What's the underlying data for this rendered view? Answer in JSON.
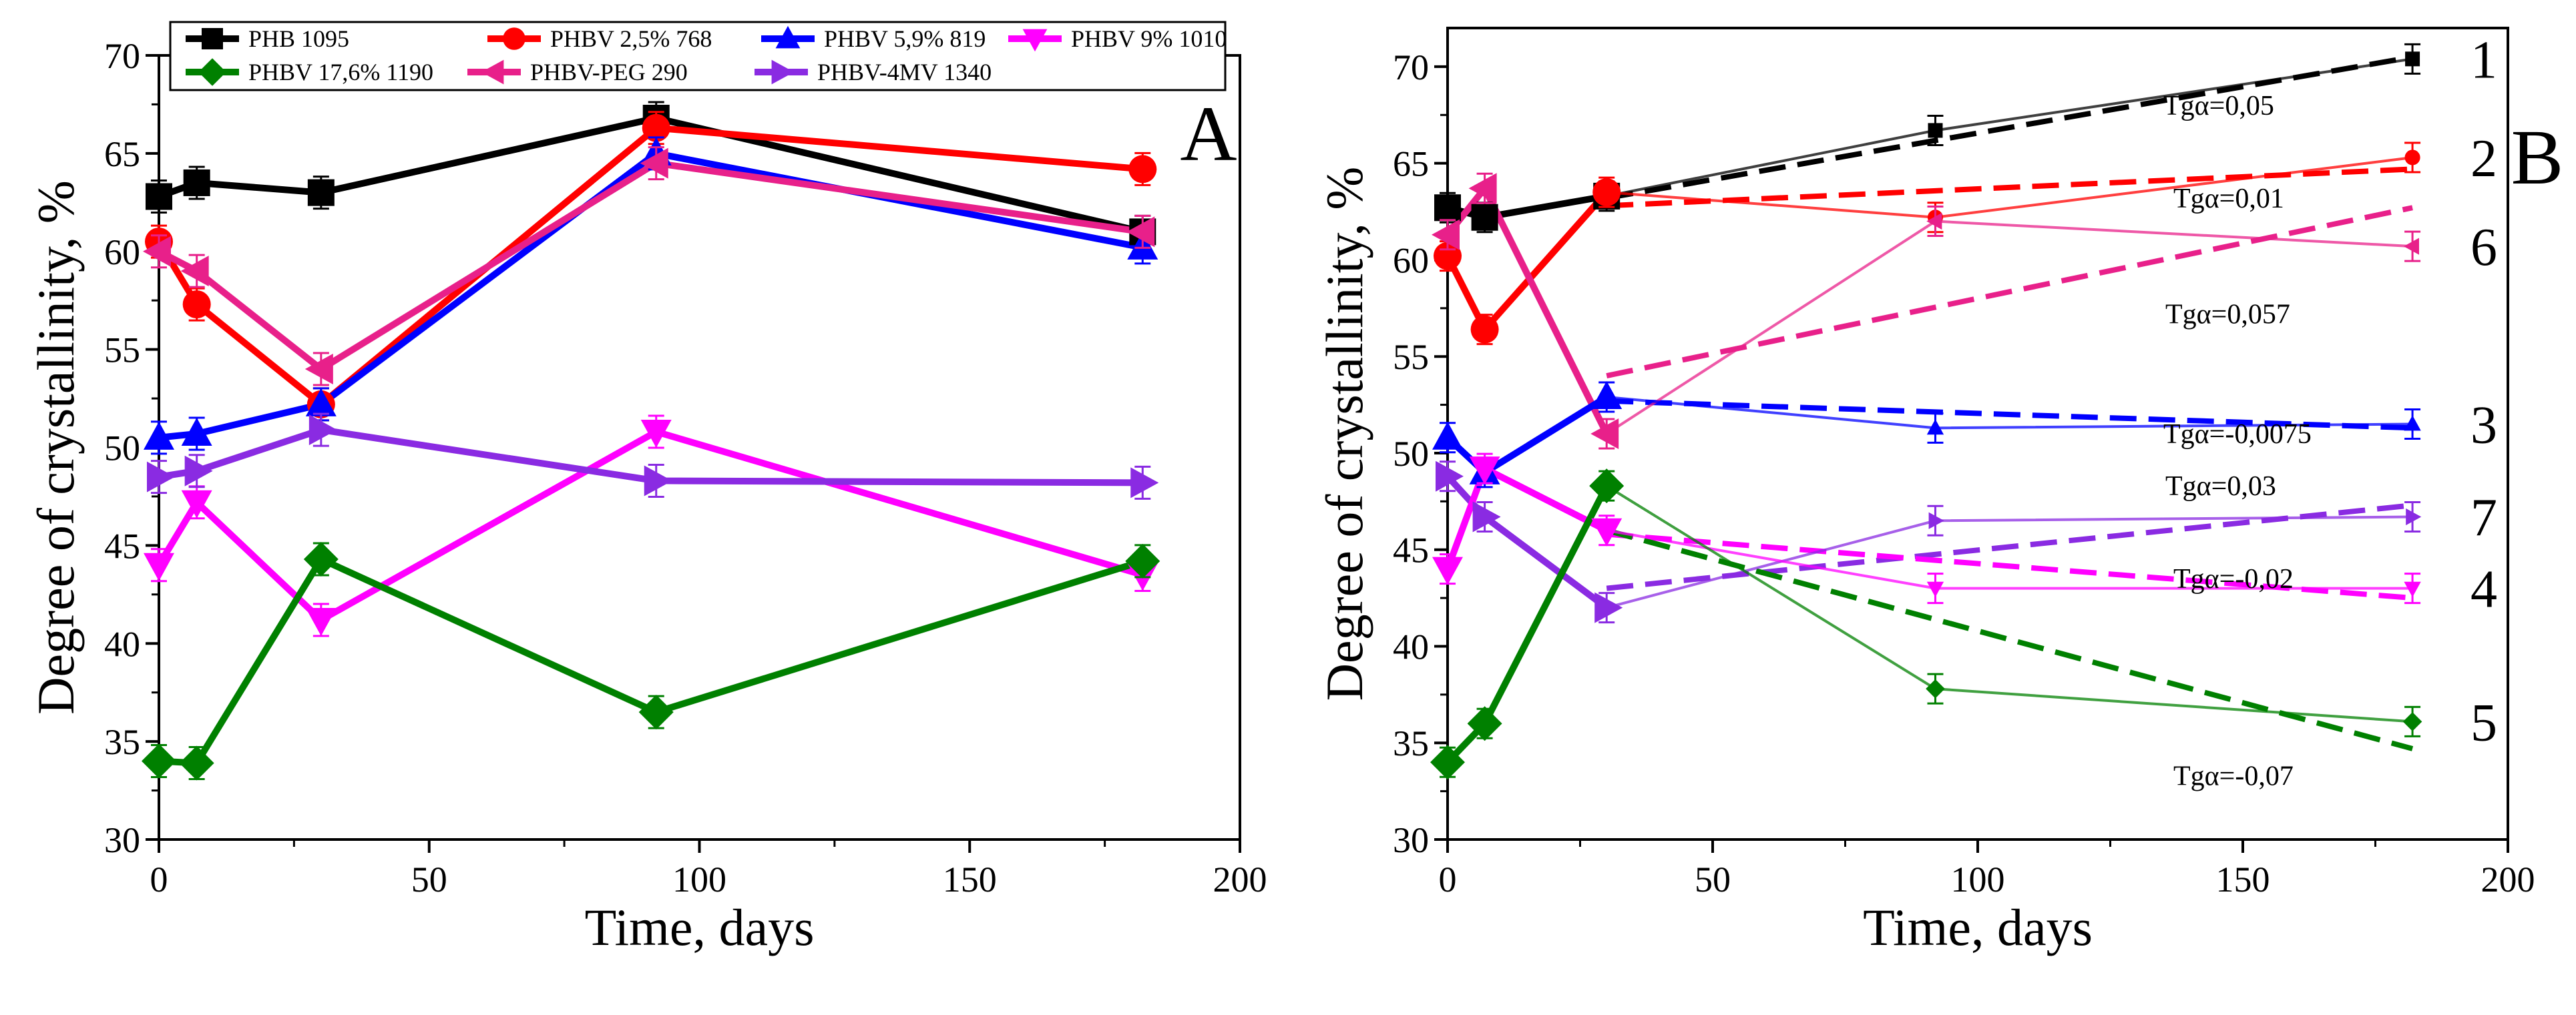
{
  "chart_data": [
    {
      "panel_label": "A",
      "type": "line",
      "xlabel": "Time, days",
      "ylabel": "Degree of crystallinity, %",
      "xlim": [
        0,
        200
      ],
      "ylim": [
        30,
        70
      ],
      "xticks": [
        0,
        50,
        100,
        150,
        200
      ],
      "yticks": [
        30,
        35,
        40,
        45,
        50,
        55,
        60,
        65,
        70
      ],
      "grid": false,
      "legend_position": "top-left",
      "series": [
        {
          "name": "PHB 1095",
          "color": "#000000",
          "marker": "square",
          "x": [
            0,
            7,
            30,
            92,
            182
          ],
          "y": [
            62.8,
            63.5,
            63.0,
            66.8,
            61.0
          ]
        },
        {
          "name": "PHBV 2,5% 768",
          "color": "#ff0000",
          "marker": "circle",
          "x": [
            0,
            7,
            30,
            92,
            182
          ],
          "y": [
            60.5,
            57.3,
            52.2,
            66.3,
            64.2
          ]
        },
        {
          "name": "PHBV 5,9% 819",
          "color": "#0000ff",
          "marker": "triangle-up",
          "x": [
            0,
            7,
            30,
            92,
            182
          ],
          "y": [
            50.5,
            50.7,
            52.2,
            65.0,
            60.2
          ]
        },
        {
          "name": "PHBV 9% 1010",
          "color": "#ff00ff",
          "marker": "triangle-down",
          "x": [
            0,
            7,
            30,
            92,
            182
          ],
          "y": [
            44.0,
            47.2,
            41.2,
            50.8,
            43.5
          ]
        },
        {
          "name": "PHBV 17,6% 1190",
          "color": "#008000",
          "marker": "diamond",
          "x": [
            0,
            7,
            30,
            92,
            182
          ],
          "y": [
            34.0,
            33.9,
            44.3,
            36.5,
            44.2
          ]
        },
        {
          "name": "PHBV-PEG  290",
          "color": "#e8208a",
          "marker": "triangle-left",
          "x": [
            0,
            7,
            30,
            92,
            182
          ],
          "y": [
            60.0,
            59.0,
            54.0,
            64.5,
            61.0
          ]
        },
        {
          "name": "PHBV-4MV 1340",
          "color": "#8a2be2",
          "marker": "triangle-right",
          "x": [
            0,
            7,
            30,
            92,
            182
          ],
          "y": [
            48.5,
            48.8,
            50.9,
            48.3,
            48.2
          ]
        }
      ]
    },
    {
      "panel_label": "B",
      "type": "line",
      "xlabel": "Time, days",
      "ylabel": "Degree of crystallinity, %",
      "xlim": [
        0,
        200
      ],
      "ylim": [
        30,
        72
      ],
      "xticks": [
        0,
        50,
        100,
        150,
        200
      ],
      "yticks": [
        30,
        35,
        40,
        45,
        50,
        55,
        60,
        65,
        70
      ],
      "grid": false,
      "series": [
        {
          "label_number": "1",
          "slope_label": "Tgα=0,05",
          "color": "#000000",
          "marker": "square",
          "x": [
            0,
            7,
            30,
            92,
            182
          ],
          "y": [
            62.7,
            62.2,
            63.3,
            66.7,
            70.4
          ],
          "fit": [
            [
              30,
              63.2
            ],
            [
              182,
              70.5
            ]
          ]
        },
        {
          "label_number": "2",
          "slope_label": "Tgα=0,01",
          "color": "#ff0000",
          "marker": "circle",
          "x": [
            0,
            7,
            30,
            92,
            182
          ],
          "y": [
            60.2,
            56.4,
            63.5,
            62.2,
            65.3
          ],
          "fit": [
            [
              30,
              62.8
            ],
            [
              182,
              64.7
            ]
          ]
        },
        {
          "label_number": "6",
          "slope_label": "Tgα=0,057",
          "color": "#e8208a",
          "marker": "triangle-left",
          "x": [
            0,
            7,
            30,
            92,
            182
          ],
          "y": [
            61.3,
            63.7,
            51.0,
            62.0,
            60.7
          ],
          "fit": [
            [
              30,
              54.0
            ],
            [
              182,
              62.7
            ]
          ]
        },
        {
          "label_number": "3",
          "slope_label": "Tgα=-0,0075",
          "color": "#0000ff",
          "marker": "triangle-up",
          "x": [
            0,
            7,
            30,
            92,
            182
          ],
          "y": [
            50.8,
            49.0,
            52.9,
            51.3,
            51.5
          ],
          "fit": [
            [
              30,
              52.7
            ],
            [
              182,
              51.3
            ]
          ]
        },
        {
          "label_number": "7",
          "slope_label": "Tgα=0,03",
          "color": "#8a2be2",
          "marker": "triangle-right",
          "x": [
            0,
            7,
            30,
            92,
            182
          ],
          "y": [
            48.8,
            46.7,
            42.0,
            46.5,
            46.7
          ],
          "fit": [
            [
              30,
              43.0
            ],
            [
              182,
              47.3
            ]
          ]
        },
        {
          "label_number": "4",
          "slope_label": "Tgα=-0,02",
          "color": "#ff00ff",
          "marker": "triangle-down",
          "x": [
            0,
            7,
            30,
            92,
            182
          ],
          "y": [
            44.0,
            49.2,
            46.0,
            43.0,
            43.0
          ],
          "fit": [
            [
              30,
              45.8
            ],
            [
              182,
              42.5
            ]
          ]
        },
        {
          "label_number": "5",
          "slope_label": "Tgα=-0,07",
          "color": "#008000",
          "marker": "diamond",
          "x": [
            0,
            7,
            30,
            92,
            182
          ],
          "y": [
            34.0,
            36.0,
            48.3,
            37.8,
            36.1
          ],
          "fit": [
            [
              30,
              46.0
            ],
            [
              182,
              34.7
            ]
          ]
        }
      ]
    }
  ]
}
